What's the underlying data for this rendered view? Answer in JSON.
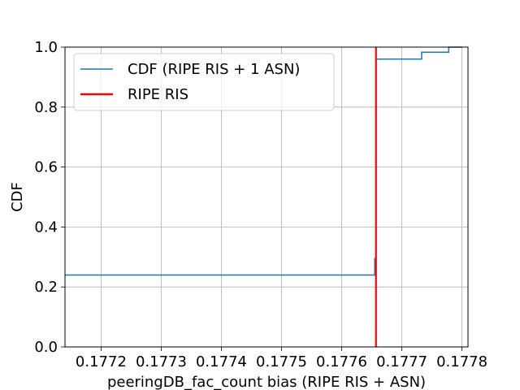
{
  "chart_data": {
    "type": "line",
    "title": "",
    "xlabel": "peeringDB_fac_count bias (RIPE RIS + ASN)",
    "ylabel": "CDF",
    "xlim": [
      0.17714,
      0.17781
    ],
    "ylim": [
      0.0,
      1.0
    ],
    "grid": true,
    "legend_position": "top-left",
    "xticks": [
      0.1772,
      0.1773,
      0.1774,
      0.1775,
      0.1776,
      0.1777,
      0.1778
    ],
    "xtick_labels": [
      "0.1772",
      "0.1773",
      "0.1774",
      "0.1775",
      "0.1776",
      "0.1777",
      "0.1778"
    ],
    "yticks": [
      0.0,
      0.2,
      0.4,
      0.6,
      0.8,
      1.0
    ],
    "ytick_labels": [
      "0.0",
      "0.2",
      "0.4",
      "0.6",
      "0.8",
      "1.0"
    ],
    "series": [
      {
        "name": "CDF (RIPE RIS + 1 ASN)",
        "kind": "step",
        "color": "#1f77b4",
        "x": [
          0.17714,
          0.177655,
          0.177655,
          0.177657,
          0.177657,
          0.177733,
          0.177733,
          0.177778,
          0.177778,
          0.177801
        ],
        "y": [
          0.24,
          0.24,
          0.295,
          0.295,
          0.96,
          0.96,
          0.983,
          0.983,
          1.0,
          1.0
        ]
      },
      {
        "name": "RIPE RIS",
        "kind": "vline",
        "color": "#ff0000",
        "x": 0.177657
      }
    ]
  }
}
